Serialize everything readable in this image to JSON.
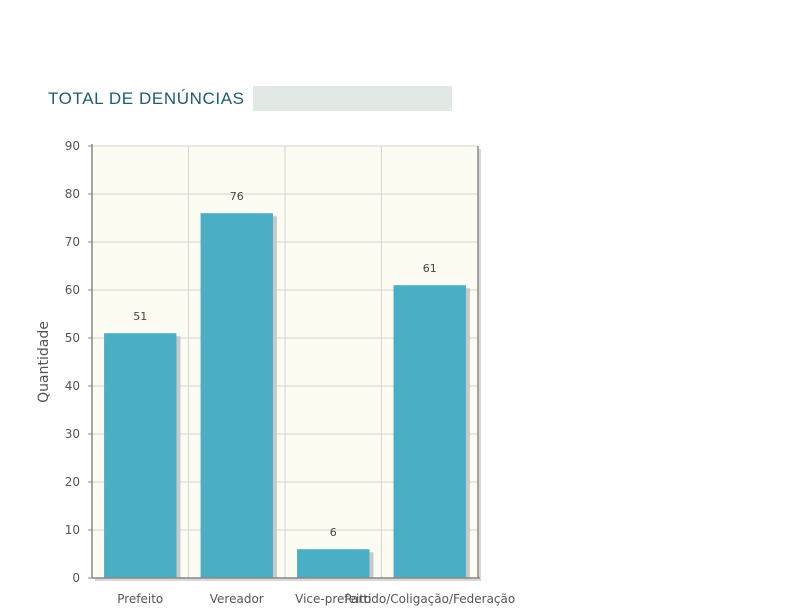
{
  "header": {
    "title": "TOTAL DE DENÚNCIAS"
  },
  "colors": {
    "bar": "#4aaec4",
    "plot_bg": "#fdfcf2",
    "grid": "#d4d4d4",
    "axis": "#888888",
    "title": "#1f5b74"
  },
  "chart_data": {
    "type": "bar",
    "categories": [
      "Prefeito",
      "Vereador",
      "Vice-prefeito",
      "Partido/Coligação/Federação"
    ],
    "values": [
      51,
      76,
      6,
      61
    ],
    "title": "",
    "xlabel": "",
    "ylabel": "Quantidade",
    "ylim": [
      0,
      90
    ],
    "yticks": [
      0,
      10,
      20,
      30,
      40,
      50,
      60,
      70,
      80,
      90
    ],
    "grid": true,
    "legend": "none"
  }
}
